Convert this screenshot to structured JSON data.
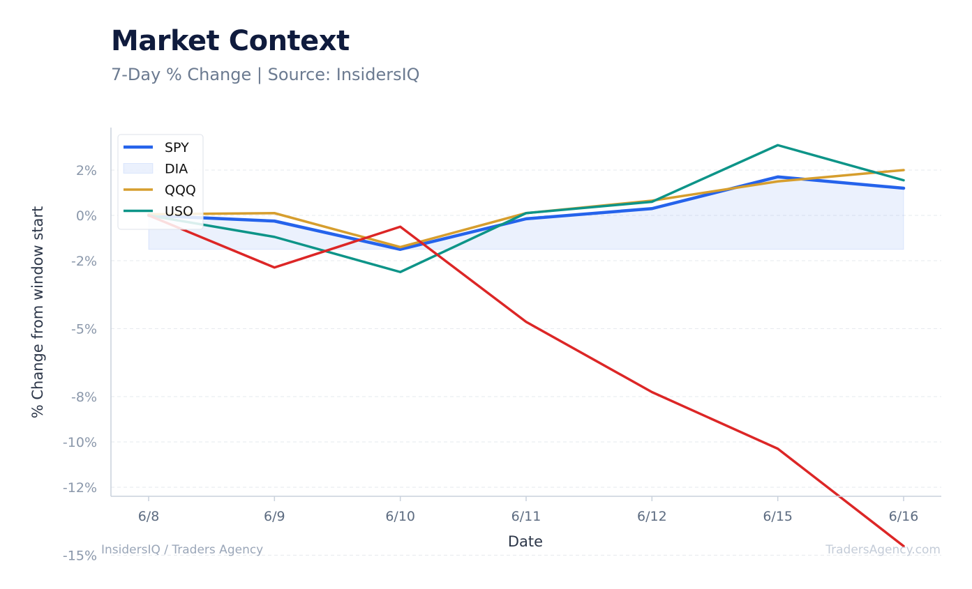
{
  "header": {
    "title": "Market Context",
    "subtitle": "7-Day % Change | Source: InsidersIQ"
  },
  "footer": {
    "left": "InsidersIQ / Traders Agency",
    "right": "TradersAgency.com"
  },
  "colors": {
    "grid": "#e6e9ee",
    "axis": "#c9d1dc"
  },
  "chart_data": {
    "type": "line",
    "xlabel": "Date",
    "ylabel": "% Change from window start",
    "categories": [
      "6/8",
      "6/9",
      "6/10",
      "6/11",
      "6/12",
      "6/15",
      "6/16"
    ],
    "ylim": [
      -15.5,
      4.2
    ],
    "yticks": [
      2,
      0,
      -2,
      -5,
      -8,
      -10,
      -12,
      -15
    ],
    "ytick_labels": [
      "2%",
      "0%",
      "-2%",
      "-5%",
      "-8%",
      "-10%",
      "-12%",
      "-15%"
    ],
    "grid": true,
    "legend_position": "top-left",
    "series": [
      {
        "name": "SPY",
        "color": "#2563eb",
        "style": "line-thick",
        "values": [
          0,
          -0.25,
          -1.5,
          -0.15,
          0.3,
          1.7,
          1.2
        ]
      },
      {
        "name": "DIA",
        "color": "#2563eb",
        "style": "area",
        "baseline": -1.5,
        "values": [
          0,
          -0.25,
          -1.5,
          -0.15,
          0.3,
          1.7,
          1.2
        ]
      },
      {
        "name": "QQQ",
        "color": "#d69e2e",
        "style": "line",
        "values": [
          0.05,
          0.1,
          -1.4,
          0.1,
          0.65,
          1.5,
          2.0
        ]
      },
      {
        "name": "USO",
        "color": "#0d9488",
        "style": "line",
        "values": [
          0,
          -0.95,
          -2.5,
          0.1,
          0.6,
          3.1,
          1.55
        ]
      },
      {
        "name": "",
        "color": "#dc2626",
        "style": "line",
        "values": [
          0,
          -2.3,
          -0.5,
          -4.7,
          -7.8,
          -10.3,
          -14.6
        ]
      }
    ]
  }
}
